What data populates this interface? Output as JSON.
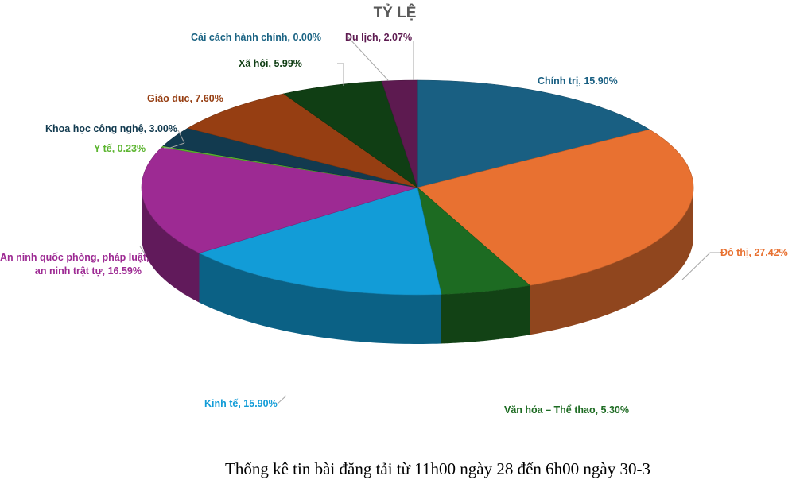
{
  "chart_data": {
    "type": "pie",
    "style": "3d",
    "title": "TỶ LỆ",
    "caption": "Thống kê tin bài đăng tải từ 11h00 ngày 28 đến 6h00 ngày 30-3",
    "slices": [
      {
        "label": "Chính trị",
        "value": 15.9,
        "text": "Chính trị, 15.90%",
        "color": "#195f82"
      },
      {
        "label": "Đô thị",
        "value": 27.42,
        "text": "Đô thị, 27.42%",
        "color": "#e87131"
      },
      {
        "label": "Văn hóa – Thể thao",
        "value": 5.3,
        "text": "Văn hóa – Thể thao, 5.30%",
        "color": "#1d6b22"
      },
      {
        "label": "Kinh tế",
        "value": 15.9,
        "text": "Kinh tế, 15.90%",
        "color": "#129cd7"
      },
      {
        "label": "An ninh quốc phòng, pháp luật, an ninh trật tự",
        "value": 16.59,
        "text": [
          "An ninh quốc phòng, pháp luật,",
          "an ninh trật tự, 16.59%"
        ],
        "color": "#9d2a93"
      },
      {
        "label": "Y tế",
        "value": 0.23,
        "text": "Y tế, 0.23%",
        "color": "#5cb530"
      },
      {
        "label": "Khoa học công nghệ",
        "value": 3.0,
        "text": "Khoa học công nghệ, 3.00%",
        "color": "#123a4f"
      },
      {
        "label": "Giáo dục",
        "value": 7.6,
        "text": "Giáo dục, 7.60%",
        "color": "#963e12"
      },
      {
        "label": "Xã hội",
        "value": 5.99,
        "text": "Xã hội, 5.99%",
        "color": "#103e14"
      },
      {
        "label": "Cải cách hành chính",
        "value": 0.0,
        "text": "Cải cách hành chính, 0.00%",
        "color": "#1a6383"
      },
      {
        "label": "Du lịch",
        "value": 2.07,
        "text": "Du lịch, 2.07%",
        "color": "#5d1a50"
      }
    ],
    "start_angle": "top",
    "direction": "clockwise",
    "legend": "none"
  }
}
